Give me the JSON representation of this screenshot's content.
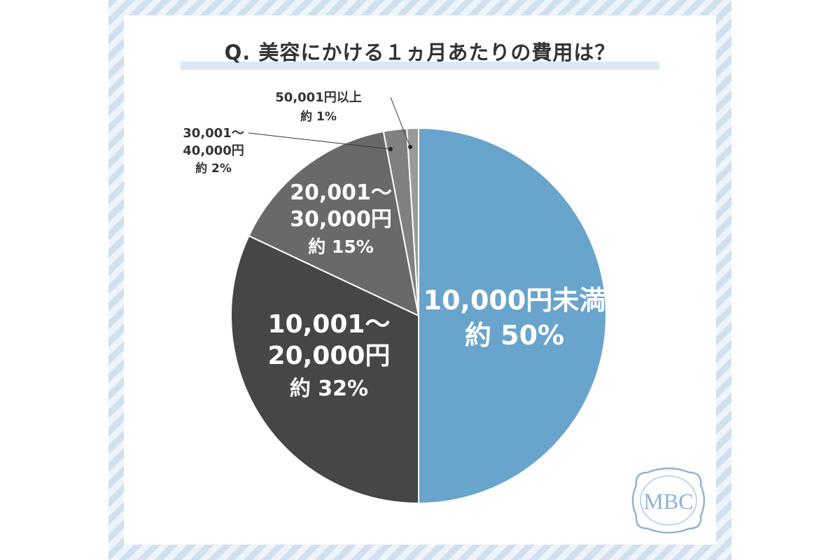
{
  "title": "Q. 美容にかける１ヵ月あたりの費用は？",
  "logo_text": "MBC",
  "colors": {
    "border_stripe_light": "#eef4fa",
    "border_stripe_dark": "#cfe0ef",
    "title_underline": "#dbe8f3",
    "logo": "#8fb3d4"
  },
  "chart_data": {
    "type": "pie",
    "title": "Q. 美容にかける１ヵ月あたりの費用は？",
    "slices": [
      {
        "label_lines": [
          "10,000円未満",
          "約 50%"
        ],
        "value": 50,
        "color": "#69a4cc",
        "text_color": "#ffffff",
        "label_outside": false
      },
      {
        "label_lines": [
          "10,001〜",
          "20,000円",
          "約 32%"
        ],
        "value": 32,
        "color": "#464646",
        "text_color": "#ffffff",
        "label_outside": false
      },
      {
        "label_lines": [
          "20,001〜",
          "30,000円",
          "約 15%"
        ],
        "value": 15,
        "color": "#696969",
        "text_color": "#ffffff",
        "label_outside": false
      },
      {
        "label_lines": [
          "30,001〜",
          "40,000円",
          "約 2%"
        ],
        "value": 2,
        "color": "#808080",
        "text_color": "#333333",
        "label_outside": true
      },
      {
        "label_lines": [
          "50,001円以上",
          "約 1%"
        ],
        "value": 1,
        "color": "#9a9a9a",
        "text_color": "#333333",
        "label_outside": true
      }
    ]
  }
}
